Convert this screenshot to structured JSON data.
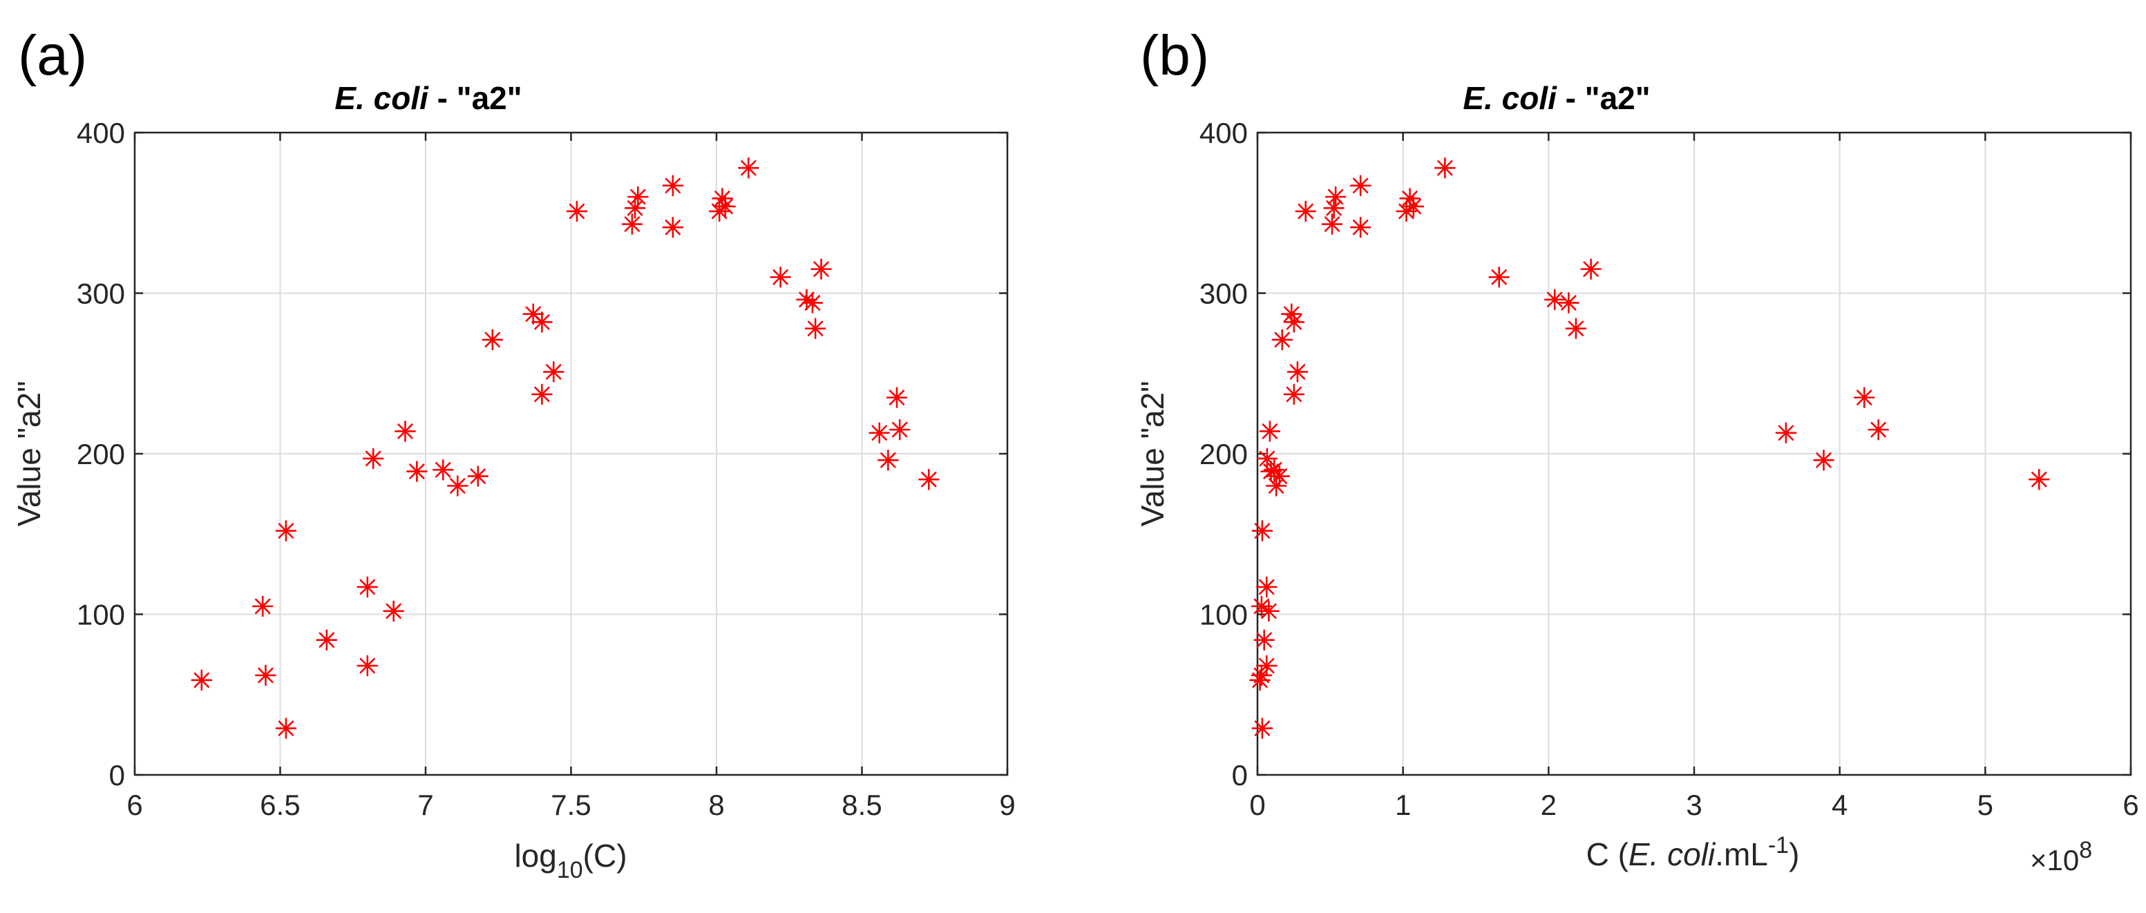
{
  "figure": {
    "panels": [
      {
        "panel_label": "(a)",
        "title_italic": "E. coli",
        "title_rest": " - \"a2\"",
        "ylabel": "Value \"a2\"",
        "xlabel_parts": [
          "log",
          "10",
          "(C)"
        ],
        "x_exponent_label": ""
      },
      {
        "panel_label": "(b)",
        "title_italic": "E. coli",
        "title_rest": " - \"a2\"",
        "ylabel": "Value \"a2\"",
        "xlabel_parts": [
          "C (",
          "E. coli",
          ".mL",
          "-1",
          ")"
        ],
        "x_exponent_label": "×10",
        "x_exponent_power": "8"
      }
    ]
  },
  "chart_data": [
    {
      "type": "scatter",
      "title": "E. coli - \"a2\"",
      "xlabel": "log10(C)",
      "ylabel": "Value \"a2\"",
      "xlim": [
        6,
        9
      ],
      "ylim": [
        0,
        400
      ],
      "xticks": [
        6,
        6.5,
        7,
        7.5,
        8,
        8.5,
        9
      ],
      "xtick_labels": [
        "6",
        "6.5",
        "7",
        "7.5",
        "8",
        "8.5",
        "9"
      ],
      "yticks": [
        0,
        100,
        200,
        300,
        400
      ],
      "ytick_labels": [
        "0",
        "100",
        "200",
        "300",
        "400"
      ],
      "grid": true,
      "marker": "*",
      "color": "#ff0000",
      "x": [
        6.23,
        6.44,
        6.45,
        6.52,
        6.52,
        6.66,
        6.8,
        6.8,
        6.82,
        6.89,
        6.93,
        6.97,
        7.06,
        7.11,
        7.18,
        7.23,
        7.37,
        7.4,
        7.4,
        7.44,
        7.52,
        7.71,
        7.72,
        7.73,
        7.85,
        7.85,
        8.01,
        8.02,
        8.03,
        8.11,
        8.22,
        8.31,
        8.33,
        8.34,
        8.36,
        8.56,
        8.59,
        8.62,
        8.63,
        8.73
      ],
      "y": [
        59,
        105,
        62,
        152,
        29,
        84,
        117,
        68,
        197,
        102,
        214,
        189,
        190,
        180,
        186,
        271,
        287,
        282,
        237,
        251,
        351,
        343,
        353,
        360,
        367,
        341,
        351,
        359,
        354,
        378,
        310,
        296,
        294,
        278,
        315,
        213,
        196,
        235,
        215,
        184
      ]
    },
    {
      "type": "scatter",
      "title": "E. coli - \"a2\"",
      "xlabel": "C (E. coli.mL-1)",
      "ylabel": "Value \"a2\"",
      "x_scale_factor": "1e8",
      "xlim": [
        0,
        6
      ],
      "ylim": [
        0,
        400
      ],
      "xticks": [
        0,
        1,
        2,
        3,
        4,
        5,
        6
      ],
      "xtick_labels": [
        "0",
        "1",
        "2",
        "3",
        "4",
        "5",
        "6"
      ],
      "yticks": [
        0,
        100,
        200,
        300,
        400
      ],
      "ytick_labels": [
        "0",
        "100",
        "200",
        "300",
        "400"
      ],
      "grid": true,
      "marker": "*",
      "color": "#ff0000",
      "x": [
        0.017,
        0.028,
        0.028,
        0.033,
        0.033,
        0.046,
        0.063,
        0.063,
        0.066,
        0.078,
        0.085,
        0.093,
        0.115,
        0.129,
        0.151,
        0.17,
        0.234,
        0.251,
        0.251,
        0.275,
        0.331,
        0.513,
        0.525,
        0.537,
        0.708,
        0.708,
        1.023,
        1.047,
        1.072,
        1.288,
        1.66,
        2.042,
        2.138,
        2.188,
        2.291,
        3.631,
        3.89,
        4.169,
        4.266,
        5.37
      ],
      "y": [
        59,
        105,
        62,
        152,
        29,
        84,
        117,
        68,
        197,
        102,
        214,
        189,
        190,
        180,
        186,
        271,
        287,
        282,
        237,
        251,
        351,
        343,
        353,
        360,
        367,
        341,
        351,
        359,
        354,
        378,
        310,
        296,
        294,
        278,
        315,
        213,
        196,
        235,
        215,
        184
      ]
    }
  ]
}
